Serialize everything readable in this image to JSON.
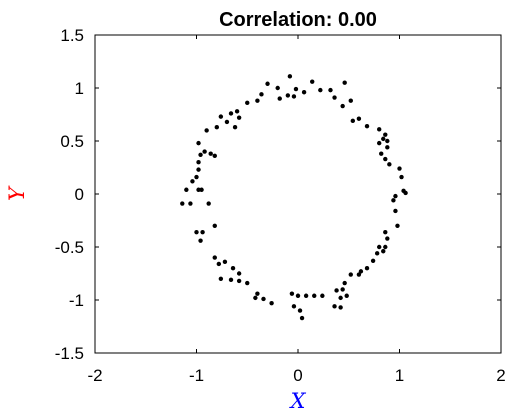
{
  "chart_data": {
    "type": "scatter",
    "title": "Correlation: 0.00",
    "xlabel": "X",
    "ylabel": "Y",
    "xlim": [
      -2,
      2
    ],
    "ylim": [
      -1.5,
      1.5
    ],
    "xticks": [
      "-2",
      "-1",
      "0",
      "1",
      "2"
    ],
    "yticks": [
      "1.5",
      "1",
      "0.5",
      "0",
      "-0.5",
      "-1",
      "-1.5"
    ],
    "grid": false,
    "colors": {
      "points": "#000000",
      "xlabel": "#0000ff",
      "ylabel": "#ff0000"
    },
    "series": [
      {
        "points": [
          [
            -0.08,
            1.11
          ],
          [
            0.14,
            1.06
          ],
          [
            0.22,
            0.98
          ],
          [
            0.32,
            0.98
          ],
          [
            0.46,
            1.05
          ],
          [
            -0.3,
            1.04
          ],
          [
            -0.2,
            1.0
          ],
          [
            -0.02,
            0.99
          ],
          [
            -0.1,
            0.93
          ],
          [
            -0.04,
            0.92
          ],
          [
            -0.18,
            0.9
          ],
          [
            0.06,
            0.96
          ],
          [
            0.36,
            0.91
          ],
          [
            0.52,
            0.88
          ],
          [
            0.44,
            0.83
          ],
          [
            -0.36,
            0.94
          ],
          [
            -0.4,
            0.88
          ],
          [
            -0.5,
            0.86
          ],
          [
            -0.58,
            0.72
          ],
          [
            -0.6,
            0.78
          ],
          [
            -0.66,
            0.76
          ],
          [
            -0.7,
            0.68
          ],
          [
            -0.76,
            0.73
          ],
          [
            -0.62,
            0.63
          ],
          [
            -0.8,
            0.63
          ],
          [
            -0.9,
            0.6
          ],
          [
            0.54,
            0.69
          ],
          [
            0.6,
            0.71
          ],
          [
            0.68,
            0.64
          ],
          [
            0.8,
            0.61
          ],
          [
            0.86,
            0.56
          ],
          [
            0.84,
            0.52
          ],
          [
            0.88,
            0.5
          ],
          [
            0.8,
            0.48
          ],
          [
            0.88,
            0.44
          ],
          [
            0.82,
            0.38
          ],
          [
            0.86,
            0.33
          ],
          [
            0.9,
            0.28
          ],
          [
            -0.98,
            0.48
          ],
          [
            -0.92,
            0.4
          ],
          [
            -0.96,
            0.37
          ],
          [
            -0.86,
            0.38
          ],
          [
            -0.82,
            0.36
          ],
          [
            -0.98,
            0.3
          ],
          [
            -0.98,
            0.23
          ],
          [
            -1.0,
            0.16
          ],
          [
            -0.98,
            0.04
          ],
          [
            -0.95,
            0.04
          ],
          [
            -1.04,
            0.12
          ],
          [
            -1.1,
            0.04
          ],
          [
            1.0,
            0.24
          ],
          [
            1.02,
            0.16
          ],
          [
            1.04,
            0.03
          ],
          [
            1.06,
            0.01
          ],
          [
            0.96,
            -0.02
          ],
          [
            -1.14,
            -0.09
          ],
          [
            -1.06,
            -0.09
          ],
          [
            -0.88,
            -0.09
          ],
          [
            0.94,
            -0.06
          ],
          [
            0.96,
            -0.16
          ],
          [
            0.98,
            -0.3
          ],
          [
            -1.0,
            -0.36
          ],
          [
            -0.94,
            -0.36
          ],
          [
            -0.82,
            -0.3
          ],
          [
            -0.96,
            -0.44
          ],
          [
            0.86,
            -0.36
          ],
          [
            0.88,
            -0.42
          ],
          [
            0.8,
            -0.5
          ],
          [
            0.86,
            -0.5
          ],
          [
            0.84,
            -0.54
          ],
          [
            0.78,
            -0.56
          ],
          [
            -0.82,
            -0.6
          ],
          [
            -0.78,
            -0.66
          ],
          [
            -0.72,
            -0.64
          ],
          [
            -0.64,
            -0.7
          ],
          [
            -0.58,
            -0.75
          ],
          [
            0.74,
            -0.63
          ],
          [
            0.68,
            -0.7
          ],
          [
            0.62,
            -0.73
          ],
          [
            0.6,
            -0.76
          ],
          [
            0.52,
            -0.76
          ],
          [
            0.46,
            -0.84
          ],
          [
            0.44,
            -0.9
          ],
          [
            0.38,
            -0.91
          ],
          [
            0.48,
            -0.96
          ],
          [
            -0.76,
            -0.8
          ],
          [
            -0.66,
            -0.81
          ],
          [
            -0.58,
            -0.82
          ],
          [
            -0.5,
            -0.84
          ],
          [
            -0.4,
            -0.94
          ],
          [
            -0.42,
            -0.98
          ],
          [
            -0.34,
            -0.99
          ],
          [
            -0.26,
            -1.03
          ],
          [
            0.0,
            -0.96
          ],
          [
            0.08,
            -0.96
          ],
          [
            0.16,
            -0.96
          ],
          [
            0.24,
            -0.96
          ],
          [
            -0.06,
            -0.94
          ],
          [
            -0.04,
            -1.06
          ],
          [
            0.02,
            -1.1
          ],
          [
            0.04,
            -1.17
          ],
          [
            0.36,
            -1.06
          ],
          [
            0.42,
            -1.07
          ],
          [
            0.42,
            -0.98
          ]
        ]
      }
    ]
  }
}
